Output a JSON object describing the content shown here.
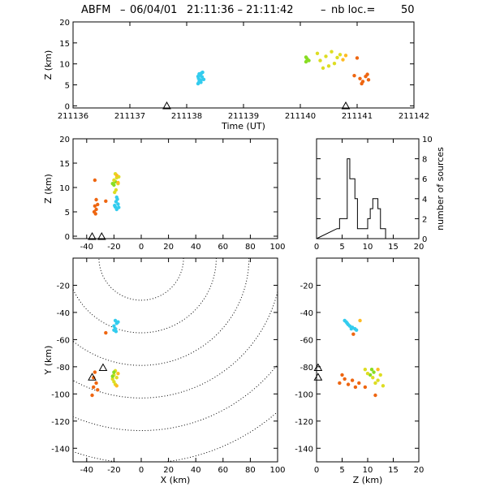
{
  "title": {
    "prefix": "ABFM",
    "date": "06/04/01",
    "time_range": "21:11:36 – 21:11:42",
    "count_label": "nb loc.=",
    "count": "50"
  },
  "chart_data": [
    {
      "id": "time_height",
      "type": "scatter",
      "xlabel": "Time (UT)",
      "ylabel": "Z (km)",
      "xlim": [
        211136,
        211142
      ],
      "ylim": [
        -0.5,
        20
      ],
      "xticks": [
        "211136",
        "211137",
        "211138",
        "211139",
        "211140",
        "211141",
        "211142"
      ],
      "yticks": [
        "0",
        "5",
        "10",
        "15",
        "20"
      ],
      "station_markers_x": [
        211137.65,
        211140.8
      ],
      "groups": [
        {
          "color": "#33ccee",
          "points": [
            [
              211138.2,
              5.3
            ],
            [
              211138.22,
              5.8
            ],
            [
              211138.25,
              6.1
            ],
            [
              211138.21,
              6.5
            ],
            [
              211138.27,
              6.9
            ],
            [
              211138.24,
              7.3
            ],
            [
              211138.22,
              7.6
            ],
            [
              211138.28,
              8.0
            ],
            [
              211138.25,
              5.6
            ],
            [
              211138.3,
              6.3
            ],
            [
              211138.2,
              7.0
            ],
            [
              211138.26,
              7.8
            ]
          ]
        },
        {
          "color": "#88dd22",
          "points": [
            [
              211140.1,
              10.5
            ],
            [
              211140.12,
              11.2
            ],
            [
              211140.15,
              10.8
            ],
            [
              211140.1,
              11.6
            ]
          ]
        },
        {
          "color": "#dddd22",
          "points": [
            [
              211140.3,
              12.5
            ],
            [
              211140.35,
              10.8
            ],
            [
              211140.45,
              11.8
            ],
            [
              211140.5,
              9.5
            ],
            [
              211140.55,
              12.9
            ],
            [
              211140.6,
              10.1
            ],
            [
              211140.65,
              11.5
            ],
            [
              211140.4,
              9.0
            ],
            [
              211140.7,
              12.2
            ]
          ]
        },
        {
          "color": "#ffbb22",
          "points": [
            [
              211140.75,
              11.0
            ],
            [
              211140.8,
              12.0
            ]
          ]
        },
        {
          "color": "#ee6611",
          "points": [
            [
              211141.0,
              11.4
            ],
            [
              211140.95,
              7.2
            ],
            [
              211141.05,
              6.5
            ],
            [
              211141.1,
              5.8
            ],
            [
              211141.15,
              7.0
            ],
            [
              211141.2,
              6.2
            ],
            [
              211141.08,
              5.3
            ],
            [
              211141.18,
              7.5
            ]
          ]
        }
      ]
    },
    {
      "id": "x_z",
      "type": "scatter",
      "xlabel": "",
      "ylabel": "Z (km)",
      "xlim": [
        -50,
        100
      ],
      "ylim": [
        -0.5,
        20
      ],
      "xticks": [
        "-40",
        "-20",
        "0",
        "20",
        "40",
        "60",
        "80",
        "100"
      ],
      "yticks": [
        "0",
        "5",
        "10",
        "15",
        "20"
      ],
      "station_markers_x": [
        -36,
        -29
      ],
      "groups": [
        {
          "color": "#33ccee",
          "points": [
            [
              -18,
              5.5
            ],
            [
              -19,
              6.0
            ],
            [
              -17,
              6.6
            ],
            [
              -18.5,
              7.1
            ],
            [
              -17.5,
              7.6
            ],
            [
              -18,
              8.0
            ],
            [
              -19.5,
              6.3
            ],
            [
              -16.5,
              5.9
            ]
          ]
        },
        {
          "color": "#88dd22",
          "points": [
            [
              -20,
              10.5
            ],
            [
              -19,
              11.2
            ],
            [
              -21,
              10.8
            ]
          ]
        },
        {
          "color": "#dddd22",
          "points": [
            [
              -19,
              12.8
            ],
            [
              -18,
              12.0
            ],
            [
              -20,
              11.5
            ],
            [
              -17,
              10.8
            ],
            [
              -18.5,
              9.5
            ],
            [
              -16.5,
              12.2
            ],
            [
              -19.5,
              9.0
            ]
          ]
        },
        {
          "color": "#ffbb22",
          "points": [
            [
              -18,
              12.5
            ],
            [
              -17,
              11.0
            ]
          ]
        },
        {
          "color": "#ee6611",
          "points": [
            [
              -34,
              11.5
            ],
            [
              -33,
              7.5
            ],
            [
              -34,
              6.2
            ],
            [
              -33,
              5.5
            ],
            [
              -32,
              6.5
            ],
            [
              -26,
              7.2
            ],
            [
              -34.5,
              5.0
            ],
            [
              -33.5,
              4.6
            ]
          ]
        }
      ]
    },
    {
      "id": "z_histogram",
      "type": "bar",
      "xlabel": "",
      "ylabel": "number of sources",
      "xlim": [
        0,
        20
      ],
      "ylim": [
        0,
        10
      ],
      "xticks": [
        "0",
        "5",
        "10",
        "15",
        "20"
      ],
      "yticks": [
        "0",
        "2",
        "4",
        "6",
        "8",
        "10"
      ],
      "bin_width": 0.5,
      "bins_start": [
        4.0,
        4.5,
        5.0,
        5.5,
        6.0,
        6.5,
        7.0,
        7.5,
        8.0,
        8.5,
        9.0,
        9.5,
        10.0,
        10.5,
        11.0,
        11.5,
        12.0,
        12.5,
        13.0
      ],
      "counts": [
        1,
        2,
        2,
        2,
        8,
        6,
        6,
        4,
        1,
        1,
        1,
        1,
        2,
        3,
        4,
        4,
        3,
        1,
        1
      ]
    },
    {
      "id": "x_y",
      "type": "scatter",
      "xlabel": "X (km)",
      "ylabel": "Y (km)",
      "xlim": [
        -50,
        100
      ],
      "ylim": [
        -150,
        0
      ],
      "xticks": [
        "-40",
        "-20",
        "0",
        "20",
        "40",
        "60",
        "80",
        "100"
      ],
      "yticks": [
        "-140",
        "-120",
        "-100",
        "-80",
        "-60",
        "-40",
        "-20"
      ],
      "station_markers": [
        [
          -28,
          -81
        ],
        [
          -36,
          -88
        ]
      ],
      "range_rings": [
        {
          "cx": 0,
          "cy": 0,
          "r": [
            31,
            55,
            79,
            103,
            127,
            151
          ]
        }
      ],
      "groups": [
        {
          "color": "#33ccee",
          "points": [
            [
              -19,
              -46
            ],
            [
              -18,
              -48
            ],
            [
              -20,
              -50
            ],
            [
              -19,
              -52
            ],
            [
              -18.5,
              -54
            ],
            [
              -20,
              -53
            ],
            [
              -17,
              -47
            ]
          ]
        },
        {
          "color": "#dddd22",
          "points": [
            [
              -19,
              -83
            ],
            [
              -20,
              -86
            ],
            [
              -18,
              -88
            ],
            [
              -20,
              -91
            ],
            [
              -19,
              -93
            ],
            [
              -21,
              -89
            ]
          ]
        },
        {
          "color": "#88dd22",
          "points": [
            [
              -20,
              -84
            ],
            [
              -21,
              -87
            ]
          ]
        },
        {
          "color": "#ffbb22",
          "points": [
            [
              -17,
              -85
            ],
            [
              -18,
              -94
            ]
          ]
        },
        {
          "color": "#ee6611",
          "points": [
            [
              -26,
              -55
            ],
            [
              -34,
              -84
            ],
            [
              -35,
              -88
            ],
            [
              -33,
              -92
            ],
            [
              -35,
              -95
            ],
            [
              -32,
              -97
            ],
            [
              -36,
              -101
            ]
          ]
        }
      ]
    },
    {
      "id": "z_y",
      "type": "scatter",
      "xlabel": "Z (km)",
      "ylabel": "",
      "xlim": [
        0,
        20
      ],
      "ylim": [
        -150,
        0
      ],
      "xticks": [
        "0",
        "5",
        "10",
        "15",
        "20"
      ],
      "yticks": [
        "-140",
        "-120",
        "-100",
        "-80",
        "-60",
        "-40",
        "-20"
      ],
      "station_markers": [
        [
          0.3,
          -81
        ],
        [
          0.3,
          -88
        ]
      ],
      "groups": [
        {
          "color": "#33ccee",
          "points": [
            [
              5.5,
              -46
            ],
            [
              6.0,
              -48
            ],
            [
              6.5,
              -50
            ],
            [
              7.0,
              -51
            ],
            [
              7.5,
              -52
            ],
            [
              6.2,
              -49
            ],
            [
              5.8,
              -47
            ],
            [
              7.8,
              -53
            ],
            [
              6.8,
              -52
            ]
          ]
        },
        {
          "color": "#88dd22",
          "points": [
            [
              10.8,
              -82
            ],
            [
              11.2,
              -84
            ],
            [
              10.5,
              -86
            ]
          ]
        },
        {
          "color": "#dddd22",
          "points": [
            [
              9.5,
              -82
            ],
            [
              10.0,
              -85
            ],
            [
              11.0,
              -88
            ],
            [
              12.0,
              -90
            ],
            [
              12.5,
              -86
            ],
            [
              11.5,
              -92
            ],
            [
              13.0,
              -94
            ]
          ]
        },
        {
          "color": "#ffbb22",
          "points": [
            [
              8.5,
              -46
            ],
            [
              12.0,
              -82
            ]
          ]
        },
        {
          "color": "#ee6611",
          "points": [
            [
              7.2,
              -56
            ],
            [
              4.5,
              -92
            ],
            [
              5.5,
              -89
            ],
            [
              6.2,
              -93
            ],
            [
              7.0,
              -90
            ],
            [
              7.6,
              -95
            ],
            [
              8.3,
              -92
            ],
            [
              9.5,
              -95
            ],
            [
              11.5,
              -101
            ],
            [
              5.0,
              -86
            ]
          ]
        }
      ]
    }
  ]
}
